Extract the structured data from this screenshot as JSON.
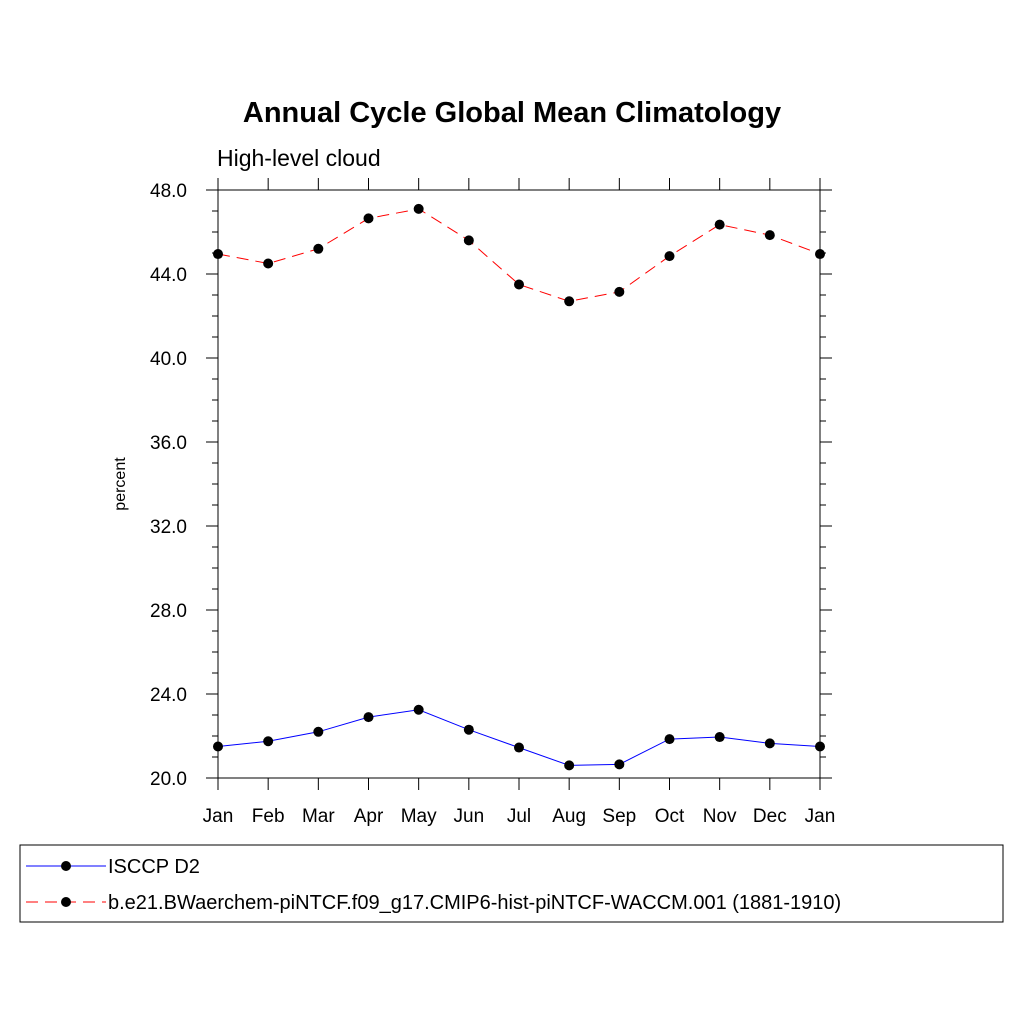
{
  "chart_data": {
    "type": "line",
    "title": "Annual Cycle Global Mean Climatology",
    "subtitle": "High-level cloud",
    "xlabel": "",
    "ylabel": "percent",
    "categories": [
      "Jan",
      "Feb",
      "Mar",
      "Apr",
      "May",
      "Jun",
      "Jul",
      "Aug",
      "Sep",
      "Oct",
      "Nov",
      "Dec",
      "Jan"
    ],
    "ylim": [
      20.0,
      48.0
    ],
    "yticks": [
      "20.0",
      "24.0",
      "28.0",
      "32.0",
      "36.0",
      "40.0",
      "44.0",
      "48.0"
    ],
    "grid": false,
    "legend_position": "bottom",
    "series": [
      {
        "name": "ISCCP D2",
        "color": "#0000ff",
        "line_style": "solid",
        "marker": "filled-circle",
        "values": [
          21.5,
          21.75,
          22.2,
          22.9,
          23.25,
          22.3,
          21.45,
          20.6,
          20.65,
          21.85,
          21.95,
          21.65,
          21.5
        ]
      },
      {
        "name": "b.e21.BWaerchem-piNTCF.f09_g17.CMIP6-hist-piNTCF-WACCM.001 (1881-1910)",
        "color": "#ff0000",
        "line_style": "dashed",
        "marker": "filled-circle",
        "values": [
          44.95,
          44.5,
          45.2,
          46.65,
          47.1,
          45.6,
          43.5,
          42.7,
          43.15,
          44.85,
          46.35,
          45.85,
          44.95
        ]
      }
    ]
  }
}
